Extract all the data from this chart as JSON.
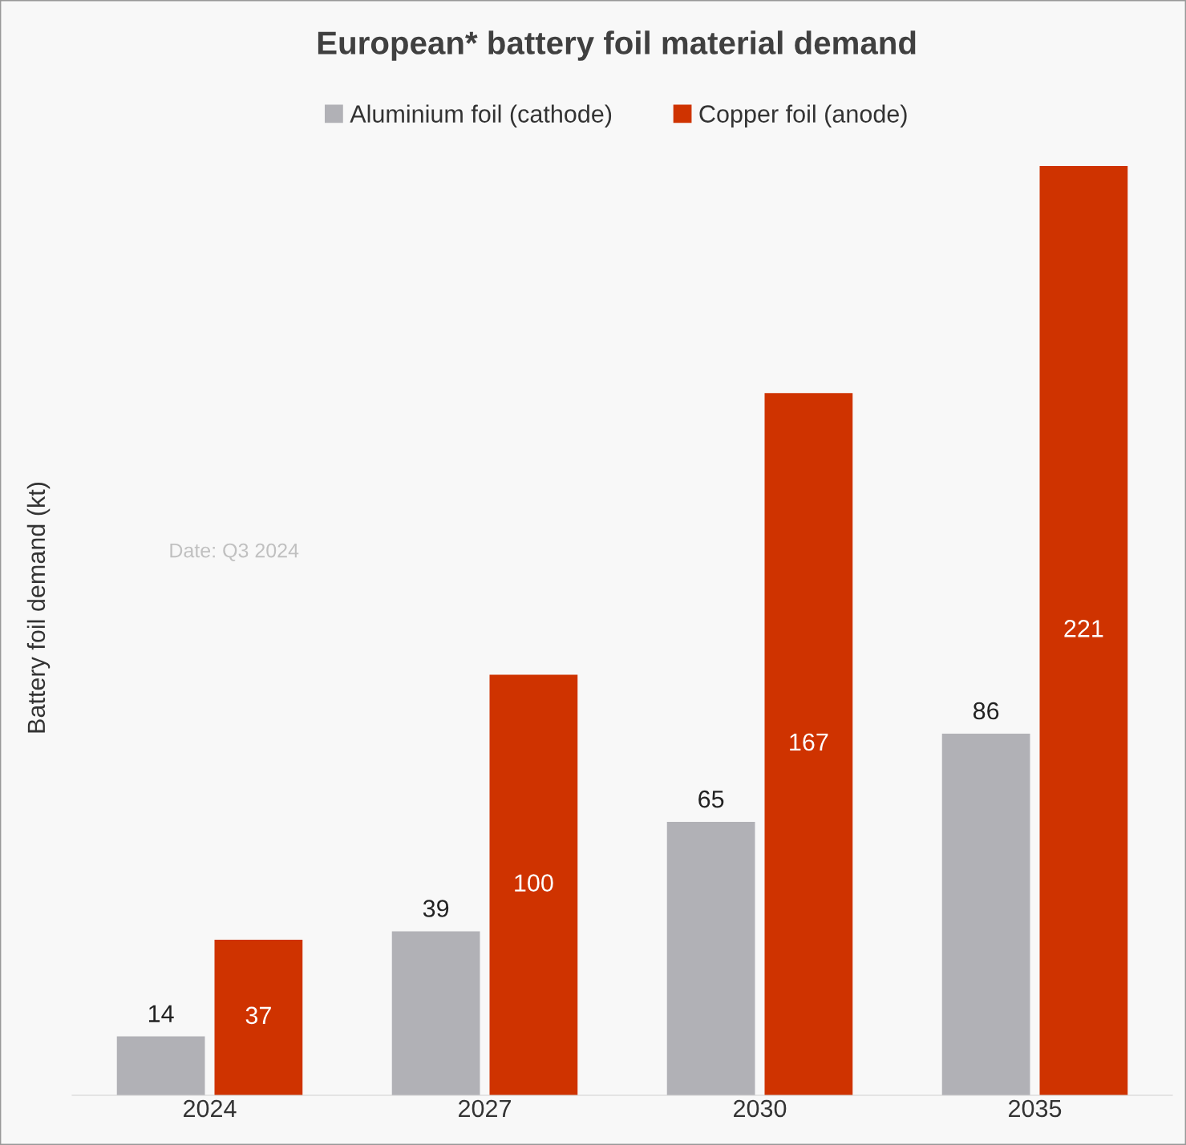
{
  "chart_data": {
    "type": "bar",
    "title": "European* battery foil material demand",
    "ylabel": "Battery foil demand (kt)",
    "categories": [
      "2024",
      "2027",
      "2030",
      "2035"
    ],
    "series": [
      {
        "name": "Aluminium foil (cathode)",
        "color": "#b1b1b6",
        "values": [
          14,
          39,
          65,
          86
        ]
      },
      {
        "name": "Copper foil (anode)",
        "color": "#cf3300",
        "values": [
          37,
          100,
          167,
          221
        ]
      }
    ],
    "data_labels": true,
    "legend": "top",
    "grid": false,
    "tick_labels": "x",
    "annotations": [
      "Date: Q3 2024"
    ]
  }
}
